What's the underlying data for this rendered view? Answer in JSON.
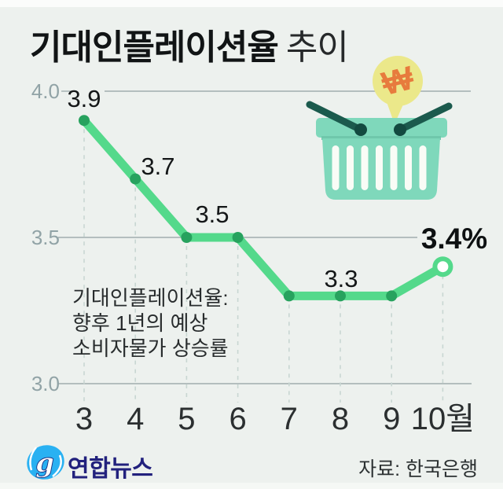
{
  "page": {
    "background": "#edf1ee",
    "accent_green": "#54d98b",
    "marker_green": "#27a25e"
  },
  "header": {
    "title_main": "기대인플레이션율",
    "title_suffix": "추이"
  },
  "chart_data": {
    "type": "line",
    "title": "기대인플레이션율 추이",
    "categories": [
      "3",
      "4",
      "5",
      "6",
      "7",
      "8",
      "9",
      "10"
    ],
    "x_axis_labels": [
      "3",
      "4",
      "5",
      "6",
      "7",
      "8",
      "9",
      "10월"
    ],
    "values": [
      3.9,
      3.7,
      3.5,
      3.5,
      3.3,
      3.3,
      3.3,
      3.4
    ],
    "unit": "%",
    "xlabel": "월 (month)",
    "ylabel": "기대인플레이션율 (%)",
    "ylim": [
      3.0,
      4.0
    ],
    "y_tick_labels": [
      "4.0",
      "3.5",
      "3.0"
    ],
    "visible_value_labels": [
      "3.9",
      "3.7",
      "3.5",
      "3.3",
      "3.4%"
    ],
    "last_point_style": "open-circle",
    "grid": "horizontal solid + vertical dashed droplines",
    "legend": "none",
    "line_color": "#54d98b",
    "marker_color": "#27a25e",
    "annotation_lines": [
      "기대인플레이션율:",
      "향후 1년의 예상",
      "소비자물가 상승률"
    ]
  },
  "illustration": {
    "name": "shopping-basket-with-won-speech-bubble",
    "won_symbol": "₩",
    "basket_color": "#7fd8bb",
    "handle_color": "#1b5a4d",
    "bubble_color": "#ebe88a",
    "won_color": "#e77b3d"
  },
  "footer": {
    "logo_text": "연합뉴스",
    "logo_glyph": "g",
    "source": "자료: 한국은행"
  }
}
